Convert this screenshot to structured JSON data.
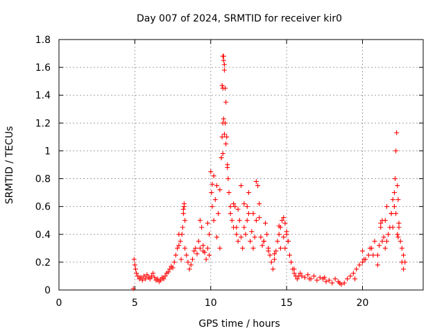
{
  "chart_data": {
    "type": "scatter",
    "title": "Day 007 of 2024, SRMTID for receiver kir0",
    "xlabel": "GPS time / hours",
    "ylabel": "SRMTID / TECUs",
    "xlim": [
      0,
      24
    ],
    "ylim": [
      0,
      1.8
    ],
    "xticks": [
      0,
      5,
      10,
      15,
      20
    ],
    "xtick_labels": [
      "0",
      "5",
      "10",
      "15",
      "20"
    ],
    "yticks": [
      0,
      0.2,
      0.4,
      0.6,
      0.8,
      1,
      1.2,
      1.4,
      1.6,
      1.8
    ],
    "ytick_labels": [
      "0",
      "0.2",
      "0.4",
      "0.6",
      "0.8",
      "1",
      "1.2",
      "1.4",
      "1.6",
      "1.8"
    ],
    "grid": true,
    "marker": "+",
    "marker_color": "#ff0000",
    "series": [
      {
        "name": "SRMTID",
        "x": [
          4.9,
          4.95,
          5.0,
          5.05,
          5.1,
          5.2,
          5.3,
          5.4,
          5.5,
          5.6,
          5.7,
          5.8,
          5.9,
          6.0,
          6.1,
          6.2,
          6.3,
          6.4,
          6.5,
          6.6,
          6.7,
          6.8,
          6.9,
          7.0,
          7.1,
          7.2,
          7.3,
          7.4,
          7.5,
          7.6,
          7.7,
          7.8,
          7.9,
          8.0,
          8.05,
          8.1,
          8.15,
          8.2,
          8.25,
          8.3,
          8.4,
          8.5,
          8.6,
          8.7,
          8.8,
          8.9,
          9.0,
          9.1,
          9.2,
          9.3,
          9.4,
          9.5,
          9.6,
          9.7,
          9.8,
          9.9,
          10.0,
          10.05,
          10.1,
          10.2,
          10.3,
          10.4,
          10.5,
          10.6,
          10.7,
          10.75,
          10.8,
          10.85,
          10.9,
          10.95,
          11.0,
          11.05,
          11.1,
          11.15,
          11.2,
          11.3,
          11.4,
          11.5,
          11.6,
          11.7,
          11.8,
          11.9,
          12.0,
          12.1,
          12.2,
          12.3,
          12.4,
          12.5,
          12.6,
          12.7,
          12.8,
          12.9,
          13.0,
          13.1,
          13.2,
          13.3,
          13.4,
          13.5,
          13.6,
          13.7,
          13.8,
          13.9,
          14.0,
          14.1,
          14.2,
          14.3,
          14.4,
          14.5,
          14.6,
          14.7,
          14.8,
          14.9,
          15.0,
          15.1,
          15.2,
          15.3,
          15.4,
          15.5,
          15.6,
          15.7,
          15.8,
          15.9,
          16.0,
          16.2,
          16.4,
          16.6,
          16.8,
          17.0,
          17.2,
          17.4,
          17.6,
          17.8,
          18.0,
          18.2,
          18.4,
          18.6,
          18.8,
          19.0,
          19.2,
          19.4,
          19.6,
          19.8,
          20.0,
          20.2,
          20.4,
          20.6,
          20.8,
          21.0,
          21.1,
          21.2,
          21.3,
          21.4,
          21.5,
          21.6,
          21.7,
          21.8,
          21.9,
          22.0,
          22.1,
          22.15,
          22.2,
          22.25,
          22.3,
          22.35,
          22.4,
          22.5,
          22.6,
          22.7,
          22.8,
          10.8,
          10.85,
          10.9,
          10.75,
          10.8,
          10.95,
          10.7,
          11.0,
          10.8,
          10.9,
          11.1,
          10.85,
          12.2,
          12.5,
          12.8,
          13.0,
          13.2,
          12.0,
          11.8,
          11.5,
          10.2,
          10.1,
          9.8,
          14.5,
          14.8,
          15.0,
          14.9,
          15.1,
          20.0,
          20.1,
          20.5,
          20.7,
          22.3,
          22.2,
          22.4,
          22.35,
          22.1,
          21.5,
          21.9,
          21.6,
          22.0,
          21.2,
          8.2,
          8.25,
          8.3,
          7.9,
          9.3,
          9.5,
          9.9,
          10.4,
          10.6,
          11.3,
          11.7,
          12.4,
          13.5,
          13.8,
          14.2,
          14.6,
          15.5,
          16.5,
          17.5,
          18.5,
          19.5,
          21.0,
          21.3,
          22.6,
          22.7
        ],
        "y": [
          0.01,
          0.22,
          0.18,
          0.15,
          0.12,
          0.1,
          0.08,
          0.09,
          0.07,
          0.1,
          0.08,
          0.11,
          0.09,
          0.08,
          0.1,
          0.12,
          0.09,
          0.07,
          0.08,
          0.06,
          0.07,
          0.09,
          0.08,
          0.1,
          0.12,
          0.13,
          0.15,
          0.17,
          0.16,
          0.2,
          0.25,
          0.3,
          0.32,
          0.35,
          0.22,
          0.4,
          0.45,
          0.55,
          0.6,
          0.3,
          0.25,
          0.2,
          0.15,
          0.18,
          0.22,
          0.28,
          0.3,
          0.26,
          0.35,
          0.5,
          0.45,
          0.32,
          0.27,
          0.22,
          0.3,
          0.4,
          0.85,
          0.7,
          0.6,
          0.5,
          0.65,
          0.75,
          0.55,
          0.72,
          0.95,
          1.1,
          1.2,
          1.68,
          1.62,
          1.45,
          1.35,
          1.1,
          0.9,
          0.8,
          0.7,
          0.55,
          0.5,
          0.45,
          0.6,
          0.4,
          0.35,
          0.5,
          0.38,
          0.3,
          0.45,
          0.4,
          0.6,
          0.55,
          0.35,
          0.42,
          0.3,
          0.38,
          0.5,
          0.75,
          0.62,
          0.38,
          0.32,
          0.35,
          0.48,
          0.4,
          0.3,
          0.25,
          0.2,
          0.15,
          0.22,
          0.28,
          0.35,
          0.4,
          0.45,
          0.5,
          0.38,
          0.3,
          0.42,
          0.35,
          0.25,
          0.2,
          0.15,
          0.12,
          0.1,
          0.08,
          0.1,
          0.12,
          0.1,
          0.09,
          0.11,
          0.08,
          0.1,
          0.07,
          0.09,
          0.08,
          0.06,
          0.07,
          0.05,
          0.08,
          0.06,
          0.04,
          0.05,
          0.08,
          0.1,
          0.12,
          0.15,
          0.18,
          0.2,
          0.22,
          0.25,
          0.3,
          0.35,
          0.25,
          0.32,
          0.45,
          0.5,
          0.38,
          0.3,
          0.35,
          0.4,
          0.45,
          0.55,
          0.65,
          0.6,
          0.8,
          1.0,
          1.13,
          0.75,
          0.65,
          0.45,
          0.35,
          0.3,
          0.25,
          0.2,
          1.68,
          1.65,
          1.58,
          1.47,
          1.45,
          1.2,
          0.95,
          1.05,
          0.98,
          1.12,
          0.88,
          1.23,
          0.62,
          0.7,
          0.55,
          0.78,
          0.52,
          0.75,
          0.58,
          0.62,
          0.82,
          0.76,
          0.48,
          0.46,
          0.52,
          0.4,
          0.48,
          0.35,
          0.28,
          0.22,
          0.3,
          0.25,
          0.4,
          0.55,
          0.48,
          0.38,
          0.7,
          0.5,
          0.55,
          0.6,
          0.45,
          0.48,
          0.58,
          0.62,
          0.5,
          0.4,
          0.3,
          0.28,
          0.25,
          0.38,
          0.3,
          0.6,
          0.45,
          0.5,
          0.35,
          0.28,
          0.26,
          0.3,
          0.15,
          0.08,
          0.09,
          0.05,
          0.08,
          0.18,
          0.35,
          0.2,
          0.15
        ]
      }
    ]
  }
}
